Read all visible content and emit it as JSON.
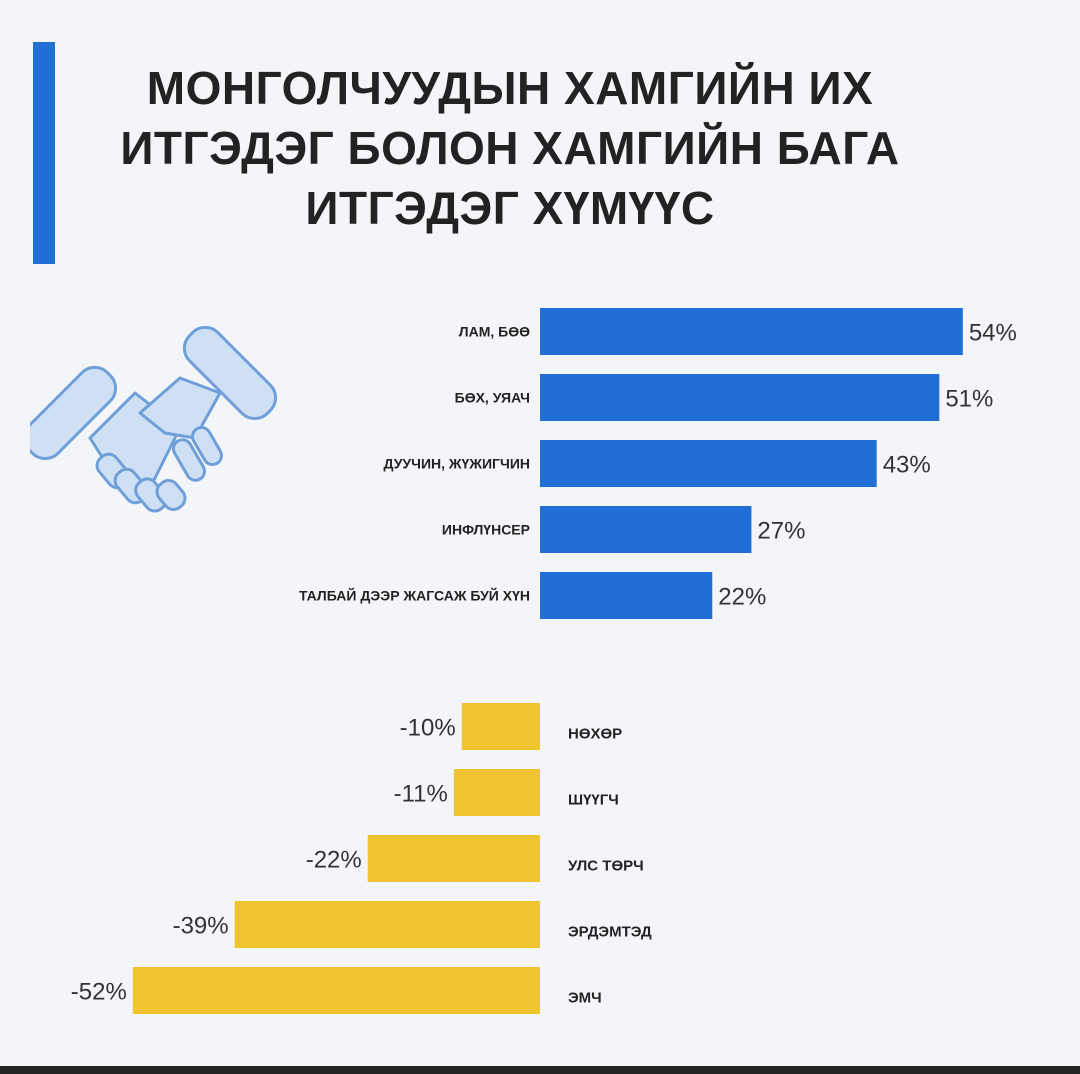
{
  "title": {
    "line1": "МОНГОЛЧУУДЫН ХАМГИЙН ИХ",
    "line2": "ИТГЭДЭГ БОЛОН ХАМГИЙН БАГА",
    "line3": "ИТГЭДЭГ ХҮМҮҮС"
  },
  "icon": "handshake-icon",
  "colors": {
    "accent": "#1f6fd6",
    "positive": "#1f6fd6",
    "negative": "#f0c431"
  },
  "chart_data": [
    {
      "type": "bar",
      "orientation": "horizontal",
      "categories": [
        "ЛАМ, БӨӨ",
        "БӨХ, УЯАЧ",
        "ДУУЧИН, ЖҮЖИГЧИН",
        "ИНФЛҮНСЕР",
        "ТАЛБАЙ ДЭЭР ЖАГСАЖ БУЙ ХҮН"
      ],
      "values": [
        54,
        51,
        43,
        27,
        22
      ],
      "labels": [
        "54%",
        "51%",
        "43%",
        "27%",
        "22%"
      ],
      "unit": "%",
      "color": "#1f6fd6"
    },
    {
      "type": "bar",
      "orientation": "horizontal",
      "categories": [
        "НӨХӨР",
        "ШҮҮГЧ",
        "УЛС ТӨРЧ",
        "ЭРДЭМТЭД",
        "ЭМЧ"
      ],
      "values": [
        -10,
        -11,
        -22,
        -39,
        -52
      ],
      "labels": [
        "-10%",
        "-11%",
        "-22%",
        "-39%",
        "-52%"
      ],
      "unit": "%",
      "color": "#f0c431"
    }
  ]
}
